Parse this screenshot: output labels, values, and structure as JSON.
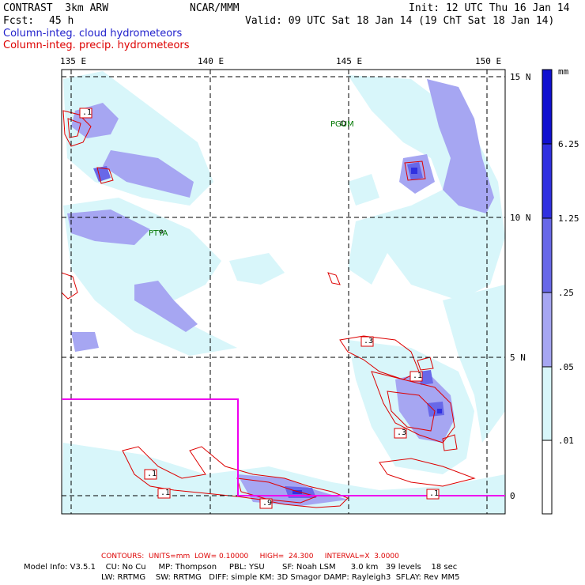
{
  "header": {
    "model_name": "CONTRAST  3km ARW",
    "org": "NCAR/MMM",
    "init": "Init: 12 UTC Thu 16 Jan 14",
    "fcst_label": "Fcst:",
    "fcst_value": "45 h",
    "valid": "Valid: 09 UTC Sat 18 Jan 14 (19 ChT Sat 18 Jan 14)",
    "field1": "Column-integ. cloud hydrometeors",
    "field2": "Column-integ. precip. hydrometeors"
  },
  "colors": {
    "field1": "#2222cc",
    "field2": "#dd0000",
    "contour": "#dd0000",
    "box": "#ee00ee",
    "station": "#007700"
  },
  "map": {
    "lon_labels": [
      "135 E",
      "140 E",
      "145 E",
      "150 E"
    ],
    "lat_labels": [
      "15 N",
      "10 N",
      "5 N",
      "0"
    ],
    "stations": [
      "PGUM",
      "PTYA"
    ],
    "contour_labels": [
      ".1",
      ".3",
      ".1",
      ".3",
      ".1",
      ".1",
      ".9",
      ".1"
    ]
  },
  "legend": {
    "unit": "mm",
    "levels": [
      "6.25",
      "1.25",
      ".25",
      ".05",
      ".01"
    ],
    "colors": [
      "#1010d0",
      "#3030e0",
      "#6868e8",
      "#a6a6f2",
      "#d8f6fa",
      "#ffffff"
    ]
  },
  "footer": {
    "contours": "CONTOURS:  UNITS=mm  LOW= 0.10000     HIGH=  24.300     INTERVAL=X  3.0000",
    "info1": "Model Info: V3.5.1    CU: No Cu     MP: Thompson     PBL: YSU       SF: Noah LSM      3.0 km   39 levels    18 sec",
    "info2": "LW: RRTMG    SW: RRTMG   DIFF: simple KM: 3D Smagor DAMP: Rayleigh3  SFLAY: Rev MM5"
  }
}
